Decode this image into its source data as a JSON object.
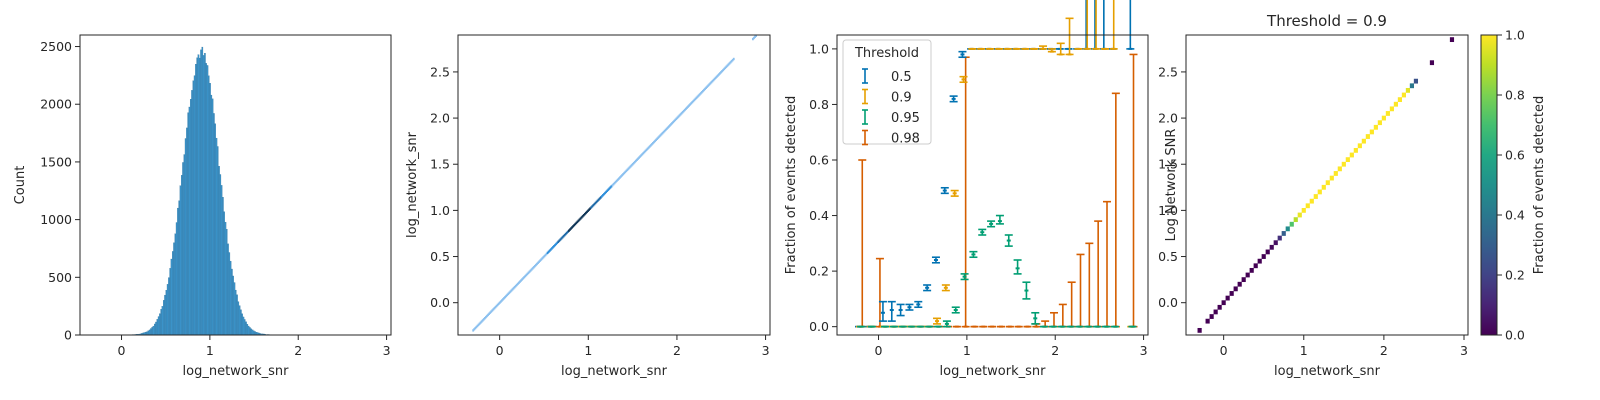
{
  "figure": {
    "colors": {
      "hist": "#3b93c9",
      "hist_edge": "#2a6f9a",
      "scatter_light": "#8bc0ef",
      "scatter_dark": "#0f3556",
      "c05": "#0072b2",
      "c09": "#e69f00",
      "c095": "#009e73",
      "c098": "#d55e00"
    }
  },
  "chart_data": [
    {
      "type": "bar",
      "subtype": "histogram",
      "xlabel": "log_network_snr",
      "ylabel": "Count",
      "xlim": [
        -0.47,
        3.05
      ],
      "ylim": [
        0,
        2600
      ],
      "xticks": [
        0,
        1,
        2,
        3
      ],
      "yticks": [
        0,
        500,
        1000,
        1500,
        2000,
        2500
      ],
      "distribution": {
        "kind": "normal",
        "center": 0.9,
        "sd": 0.205,
        "peak": 2450,
        "range": [
          -0.3,
          2.9
        ],
        "bins": 220
      }
    },
    {
      "type": "heatmap",
      "subtype": "2d-histogram",
      "xlabel": "log_network_snr",
      "ylabel": "log_network_snr",
      "xlim": [
        -0.47,
        3.05
      ],
      "ylim": [
        -0.35,
        2.9
      ],
      "xticks": [
        0,
        1,
        2,
        3
      ],
      "yticks": [
        0.0,
        0.5,
        1.0,
        1.5,
        2.0,
        2.5
      ],
      "x_range": [
        -0.3,
        2.9
      ],
      "diagonal": true
    },
    {
      "type": "scatter",
      "subtype": "errorbar",
      "xlabel": "log_network_snr",
      "ylabel": "Fraction of events detected",
      "xlim": [
        -0.47,
        3.05
      ],
      "ylim": [
        -0.03,
        1.05
      ],
      "xticks": [
        0,
        1,
        2,
        3
      ],
      "yticks": [
        0.0,
        0.2,
        0.4,
        0.6,
        0.8,
        1.0
      ],
      "legend": {
        "title": "Threshold",
        "placement": "upper-left"
      },
      "series": [
        {
          "name": "0.5",
          "color": "#0072b2",
          "points": [
            [
              -0.22,
              0,
              0,
              0
            ],
            [
              -0.1,
              0,
              0,
              0
            ],
            [
              0.05,
              0.05,
              0.03,
              0.04
            ],
            [
              0.15,
              0.06,
              0.04,
              0.03
            ],
            [
              0.25,
              0.06,
              0.02,
              0.02
            ],
            [
              0.35,
              0.07,
              0.01,
              0.01
            ],
            [
              0.45,
              0.08,
              0.01,
              0.01
            ],
            [
              0.55,
              0.14,
              0.01,
              0.01
            ],
            [
              0.65,
              0.24,
              0.01,
              0.01
            ],
            [
              0.75,
              0.49,
              0.01,
              0.01
            ],
            [
              0.85,
              0.82,
              0.01,
              0.01
            ],
            [
              0.95,
              0.98,
              0.01,
              0.01
            ],
            [
              1.05,
              1.0,
              0,
              0
            ],
            [
              1.15,
              1.0,
              0,
              0
            ],
            [
              1.25,
              1.0,
              0,
              0
            ],
            [
              1.35,
              1.0,
              0,
              0
            ],
            [
              1.45,
              1.0,
              0,
              0
            ],
            [
              1.55,
              1.0,
              0,
              0
            ],
            [
              1.65,
              1.0,
              0,
              0
            ],
            [
              1.75,
              1.0,
              0,
              0
            ],
            [
              1.85,
              1.0,
              0,
              0
            ],
            [
              1.95,
              1.0,
              0,
              0
            ],
            [
              2.05,
              1.0,
              0,
              0
            ],
            [
              2.15,
              1.0,
              0,
              0
            ],
            [
              2.25,
              1.0,
              0,
              0
            ],
            [
              2.35,
              1.0,
              0,
              0.45
            ],
            [
              2.45,
              1.0,
              0,
              0.6
            ],
            [
              2.55,
              1.0,
              0,
              0.7
            ],
            [
              2.65,
              1.0,
              0,
              0
            ],
            [
              2.85,
              1.0,
              0,
              0.98
            ]
          ]
        },
        {
          "name": "0.9",
          "color": "#e69f00",
          "points": [
            [
              -0.22,
              0,
              0,
              0
            ],
            [
              -0.1,
              0,
              0,
              0
            ],
            [
              0.05,
              0,
              0,
              0
            ],
            [
              0.15,
              0,
              0,
              0
            ],
            [
              0.25,
              0,
              0,
              0
            ],
            [
              0.35,
              0,
              0,
              0
            ],
            [
              0.45,
              0,
              0,
              0
            ],
            [
              0.55,
              0,
              0,
              0
            ],
            [
              0.65,
              0.02,
              0.01,
              0.01
            ],
            [
              0.75,
              0.14,
              0.01,
              0.01
            ],
            [
              0.85,
              0.48,
              0.01,
              0.01
            ],
            [
              0.95,
              0.89,
              0.01,
              0.01
            ],
            [
              1.05,
              1.0,
              0,
              0
            ],
            [
              1.15,
              1.0,
              0,
              0
            ],
            [
              1.25,
              1.0,
              0,
              0
            ],
            [
              1.35,
              1.0,
              0,
              0
            ],
            [
              1.45,
              1.0,
              0,
              0
            ],
            [
              1.55,
              1.0,
              0,
              0
            ],
            [
              1.65,
              1.0,
              0,
              0
            ],
            [
              1.75,
              1.0,
              0,
              0
            ],
            [
              1.85,
              1.0,
              0,
              0.01
            ],
            [
              1.95,
              0.99,
              0,
              0.01
            ],
            [
              2.05,
              0.98,
              0,
              0.04
            ],
            [
              2.15,
              0.98,
              0,
              0.13
            ],
            [
              2.25,
              1.0,
              0,
              0
            ],
            [
              2.35,
              1.0,
              0,
              0.8
            ],
            [
              2.45,
              1.0,
              0,
              0.84
            ],
            [
              2.55,
              1.0,
              0,
              0
            ],
            [
              2.65,
              1.0,
              0,
              0.8
            ],
            [
              2.85,
              0,
              0,
              0
            ]
          ]
        },
        {
          "name": "0.95",
          "color": "#009e73",
          "points": [
            [
              -0.22,
              0,
              0,
              0
            ],
            [
              -0.1,
              0,
              0,
              0
            ],
            [
              0.05,
              0,
              0,
              0
            ],
            [
              0.15,
              0,
              0,
              0
            ],
            [
              0.25,
              0,
              0,
              0
            ],
            [
              0.35,
              0,
              0,
              0
            ],
            [
              0.45,
              0,
              0,
              0
            ],
            [
              0.55,
              0,
              0,
              0
            ],
            [
              0.65,
              0,
              0,
              0
            ],
            [
              0.75,
              0.01,
              0.01,
              0.01
            ],
            [
              0.85,
              0.06,
              0.01,
              0.01
            ],
            [
              0.95,
              0.18,
              0.01,
              0.01
            ],
            [
              1.05,
              0.26,
              0.01,
              0.01
            ],
            [
              1.15,
              0.34,
              0.01,
              0.01
            ],
            [
              1.25,
              0.37,
              0.01,
              0.01
            ],
            [
              1.35,
              0.38,
              0.01,
              0.02
            ],
            [
              1.45,
              0.31,
              0.02,
              0.02
            ],
            [
              1.55,
              0.21,
              0.02,
              0.03
            ],
            [
              1.65,
              0.13,
              0.03,
              0.03
            ],
            [
              1.75,
              0.03,
              0.02,
              0.02
            ],
            [
              1.85,
              0,
              0,
              0
            ],
            [
              1.95,
              0,
              0,
              0
            ],
            [
              2.05,
              0,
              0,
              0
            ],
            [
              2.15,
              0,
              0,
              0
            ],
            [
              2.25,
              0,
              0,
              0
            ],
            [
              2.35,
              0,
              0,
              0
            ],
            [
              2.45,
              0,
              0,
              0
            ],
            [
              2.55,
              0,
              0,
              0
            ],
            [
              2.65,
              0,
              0,
              0
            ],
            [
              2.85,
              0,
              0,
              0
            ]
          ]
        },
        {
          "name": "0.98",
          "color": "#d55e00",
          "points": [
            [
              -0.22,
              0,
              0,
              0.6
            ],
            [
              -0.1,
              0,
              0,
              0
            ],
            [
              -0.02,
              0,
              0,
              0.245
            ],
            [
              0.05,
              0,
              0,
              0
            ],
            [
              0.15,
              0,
              0,
              0
            ],
            [
              0.25,
              0,
              0,
              0
            ],
            [
              0.35,
              0,
              0,
              0
            ],
            [
              0.45,
              0,
              0,
              0
            ],
            [
              0.55,
              0,
              0,
              0
            ],
            [
              0.65,
              0,
              0,
              0
            ],
            [
              0.75,
              0,
              0,
              0
            ],
            [
              0.85,
              0,
              0,
              0
            ],
            [
              0.95,
              0,
              0,
              0.97
            ],
            [
              1.05,
              0,
              0,
              0
            ],
            [
              1.15,
              0,
              0,
              0
            ],
            [
              1.25,
              0,
              0,
              0
            ],
            [
              1.35,
              0,
              0,
              0
            ],
            [
              1.45,
              0,
              0,
              0
            ],
            [
              1.55,
              0,
              0,
              0
            ],
            [
              1.65,
              0,
              0,
              0
            ],
            [
              1.75,
              0,
              0,
              0.01
            ],
            [
              1.85,
              0,
              0,
              0.02
            ],
            [
              1.95,
              0,
              0,
              0.05
            ],
            [
              2.05,
              0,
              0,
              0.08
            ],
            [
              2.15,
              0,
              0,
              0.16
            ],
            [
              2.25,
              0,
              0,
              0.26
            ],
            [
              2.35,
              0,
              0,
              0.3
            ],
            [
              2.45,
              0,
              0,
              0.38
            ],
            [
              2.55,
              0,
              0,
              0.45
            ],
            [
              2.65,
              0,
              0,
              0.84
            ],
            [
              2.85,
              0,
              0,
              0.98
            ]
          ]
        }
      ]
    },
    {
      "type": "heatmap",
      "title": "Threshold = 0.9",
      "xlabel": "log_network_snr",
      "ylabel": "Log Network SNR",
      "xlim": [
        -0.47,
        3.05
      ],
      "ylim": [
        -0.35,
        2.9
      ],
      "xticks": [
        0,
        1,
        2,
        3
      ],
      "yticks": [
        0.0,
        0.5,
        1.0,
        1.5,
        2.0,
        2.5
      ],
      "colorbar": {
        "label": "Fraction of events detected",
        "range": [
          0,
          1
        ],
        "ticks": [
          0.0,
          0.2,
          0.4,
          0.6,
          0.8,
          1.0
        ],
        "colormap": "viridis"
      },
      "cells": [
        [
          -0.3,
          0
        ],
        [
          -0.2,
          0
        ],
        [
          -0.15,
          0
        ],
        [
          -0.1,
          0
        ],
        [
          -0.05,
          0
        ],
        [
          0.0,
          0
        ],
        [
          0.05,
          0
        ],
        [
          0.1,
          0
        ],
        [
          0.15,
          0
        ],
        [
          0.2,
          0
        ],
        [
          0.25,
          0
        ],
        [
          0.3,
          0
        ],
        [
          0.35,
          0
        ],
        [
          0.4,
          0
        ],
        [
          0.45,
          0
        ],
        [
          0.5,
          0
        ],
        [
          0.55,
          0
        ],
        [
          0.6,
          0.02
        ],
        [
          0.65,
          0.04
        ],
        [
          0.7,
          0.14
        ],
        [
          0.75,
          0.3
        ],
        [
          0.8,
          0.48
        ],
        [
          0.85,
          0.72
        ],
        [
          0.9,
          0.89
        ],
        [
          0.95,
          0.97
        ],
        [
          1.0,
          1
        ],
        [
          1.05,
          1
        ],
        [
          1.1,
          1
        ],
        [
          1.15,
          1
        ],
        [
          1.2,
          1
        ],
        [
          1.25,
          1
        ],
        [
          1.3,
          1
        ],
        [
          1.35,
          1
        ],
        [
          1.4,
          1
        ],
        [
          1.45,
          1
        ],
        [
          1.5,
          1
        ],
        [
          1.55,
          1
        ],
        [
          1.6,
          1
        ],
        [
          1.65,
          1
        ],
        [
          1.7,
          1
        ],
        [
          1.75,
          1
        ],
        [
          1.8,
          1
        ],
        [
          1.85,
          1
        ],
        [
          1.9,
          1
        ],
        [
          1.95,
          1
        ],
        [
          2.0,
          1
        ],
        [
          2.05,
          1
        ],
        [
          2.1,
          1
        ],
        [
          2.15,
          1
        ],
        [
          2.2,
          1
        ],
        [
          2.25,
          1
        ],
        [
          2.3,
          0.96
        ],
        [
          2.35,
          0.4
        ],
        [
          2.4,
          0.25
        ],
        [
          2.6,
          0
        ],
        [
          2.85,
          0
        ]
      ]
    }
  ]
}
